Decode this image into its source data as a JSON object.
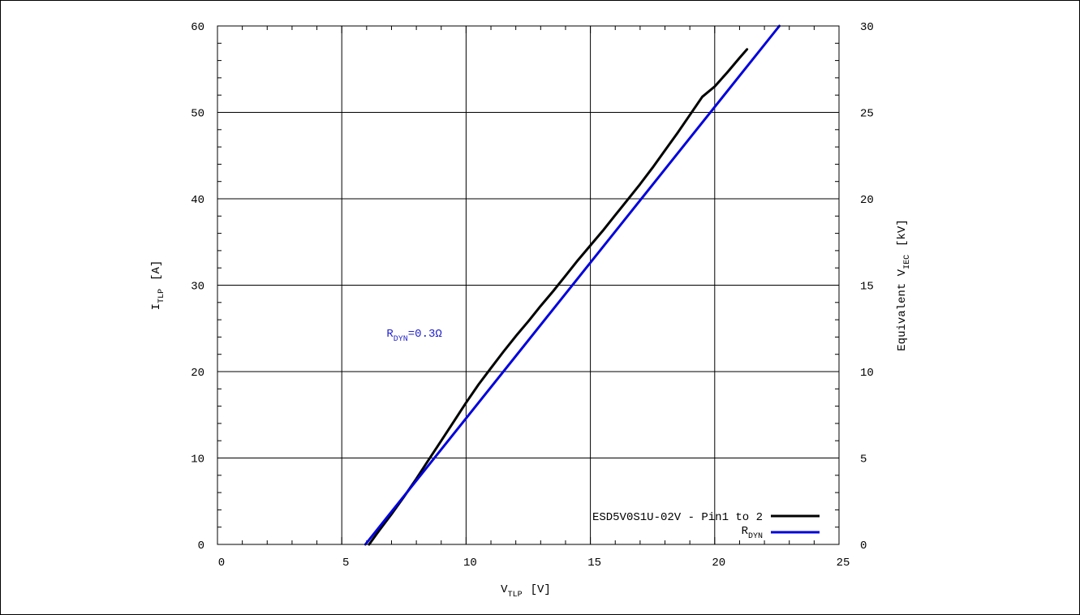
{
  "chart_data": {
    "type": "line",
    "title": "",
    "xlabel": {
      "main": "V",
      "sub": "TLP",
      "unit": "[V]"
    },
    "ylabel": {
      "main": "I",
      "sub": "TLP",
      "unit": "[A]"
    },
    "y2label": {
      "main": "Equivalent V",
      "sub": "IEC",
      "unit": "[kV]"
    },
    "xlim": [
      0,
      25
    ],
    "ylim": [
      0,
      60
    ],
    "y2lim": [
      0,
      30
    ],
    "x_ticks": [
      0,
      5,
      10,
      15,
      20,
      25
    ],
    "y_ticks": [
      0,
      10,
      20,
      30,
      40,
      50,
      60
    ],
    "y2_ticks": [
      0,
      5,
      10,
      15,
      20,
      25,
      30
    ],
    "x_minor_step": 1,
    "y_minor_step": 2,
    "grid": true,
    "legend_position": "bottom-right",
    "series": [
      {
        "name": "ESD5V0S1U-02V - Pin1 to 2",
        "color": "#000000",
        "x": [
          6.1,
          6.5,
          7.0,
          7.5,
          8.0,
          8.5,
          9.0,
          9.5,
          10.0,
          10.5,
          11.0,
          11.5,
          12.0,
          12.5,
          13.0,
          13.5,
          14.0,
          14.5,
          15.0,
          15.5,
          16.0,
          16.5,
          17.0,
          17.5,
          18.0,
          18.5,
          19.0,
          19.5,
          20.0,
          20.5,
          21.0,
          21.3
        ],
        "y": [
          0,
          1.6,
          3.5,
          5.5,
          7.6,
          9.8,
          12.0,
          14.2,
          16.4,
          18.5,
          20.4,
          22.3,
          24.1,
          25.8,
          27.6,
          29.3,
          31.1,
          32.9,
          34.6,
          36.3,
          38.1,
          39.9,
          41.7,
          43.6,
          45.6,
          47.6,
          49.7,
          51.8,
          53.0,
          54.6,
          56.3,
          57.3
        ]
      },
      {
        "name": "R",
        "name_sub": "DYN",
        "color": "#0000dd",
        "x": [
          5.95,
          22.6
        ],
        "y": [
          0,
          60
        ]
      }
    ],
    "annotations": [
      {
        "text_main": "R",
        "text_sub": "DYN",
        "text_rest": "=0.3Ω",
        "color": "#2222cc",
        "x": 6.8,
        "y": 24.5
      }
    ]
  }
}
